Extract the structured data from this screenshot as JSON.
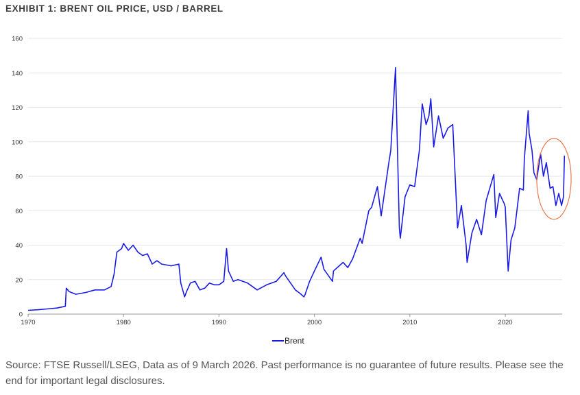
{
  "title": "EXHIBIT 1: BRENT OIL PRICE, USD / BARREL",
  "source": "Source: FTSE Russell/LSEG, Data as of 9 March 2026. Past performance is no guarantee of future results. Please see the end for important legal disclosures.",
  "chart_data": {
    "type": "line",
    "title": "EXHIBIT 1: BRENT OIL PRICE, USD / BARREL",
    "xlabel": "",
    "ylabel": "",
    "xlim": [
      1970,
      2026.3
    ],
    "ylim": [
      0,
      160
    ],
    "xticks": [
      "1970",
      "1980",
      "1990",
      "2000",
      "2010",
      "2020"
    ],
    "yticks": [
      "0",
      "20",
      "40",
      "60",
      "80",
      "100",
      "120",
      "140",
      "160"
    ],
    "grid": true,
    "legend": {
      "placement": "bottom-center",
      "entries": [
        "Brent"
      ]
    },
    "colors": {
      "Brent": "#1a1ae6",
      "highlight": "#e8794a",
      "grid": "#e6e6e6"
    },
    "highlight": {
      "shape": "ellipse",
      "x_range": [
        2023.3,
        2026.9
      ],
      "y_range": [
        55,
        102
      ]
    },
    "series": [
      {
        "name": "Brent",
        "x": [
          1970,
          1971,
          1972,
          1973,
          1973.9,
          1974,
          1974.3,
          1975,
          1976,
          1977,
          1978,
          1978.7,
          1979,
          1979.3,
          1979.8,
          1980,
          1980.5,
          1981,
          1981.5,
          1982,
          1982.5,
          1983,
          1983.5,
          1984,
          1985,
          1985.8,
          1986,
          1986.4,
          1986.6,
          1987,
          1987.5,
          1988,
          1988.5,
          1989,
          1989.5,
          1990,
          1990.5,
          1990.8,
          1991,
          1991.5,
          1992,
          1993,
          1994,
          1995,
          1996,
          1996.8,
          1997,
          1998,
          1998.5,
          1998.9,
          1999,
          1999.5,
          2000,
          2000.7,
          2001,
          2001.9,
          2002,
          2003,
          2003.5,
          2004,
          2004.8,
          2005,
          2005.7,
          2006,
          2006.6,
          2007,
          2007.8,
          2008,
          2008.5,
          2008.9,
          2009,
          2009.5,
          2010,
          2010.5,
          2011,
          2011.3,
          2011.7,
          2012,
          2012.2,
          2012.5,
          2013,
          2013.5,
          2014,
          2014.5,
          2014.9,
          2015,
          2015.4,
          2015.9,
          2016,
          2016.5,
          2017,
          2017.5,
          2018,
          2018.8,
          2019,
          2019.4,
          2019.9,
          2020,
          2020.3,
          2020.6,
          2021,
          2021.5,
          2021.9,
          2022,
          2022.4,
          2022.5,
          2022.8,
          2023,
          2023.3,
          2023.7,
          2024,
          2024.3,
          2024.7,
          2025,
          2025.3,
          2025.6,
          2025.9,
          2026.1,
          2026.2
        ],
        "values": [
          2.2,
          2.5,
          3,
          3.5,
          4.5,
          15,
          13,
          11.5,
          12.5,
          14,
          14,
          16,
          23,
          36,
          38,
          41,
          37,
          40,
          36,
          34,
          35,
          29,
          31,
          29,
          28,
          29,
          18,
          10,
          13,
          18,
          19,
          14,
          15,
          18,
          17,
          17,
          19,
          38,
          25,
          19,
          20,
          18,
          14,
          17,
          19,
          24,
          22,
          14,
          12,
          10,
          11,
          19,
          25,
          33,
          26,
          19,
          25,
          30,
          27,
          32,
          44,
          41,
          60,
          62,
          74,
          57,
          88,
          95,
          143,
          50,
          44,
          68,
          75,
          74,
          95,
          122,
          110,
          115,
          125,
          97,
          115,
          102,
          108,
          110,
          62,
          50,
          63,
          40,
          30,
          47,
          55,
          46,
          66,
          81,
          56,
          70,
          64,
          62,
          25,
          43,
          50,
          73,
          72,
          90,
          118,
          105,
          95,
          82,
          78,
          93,
          80,
          88,
          73,
          74,
          63,
          70,
          63,
          68,
          92
        ]
      }
    ]
  }
}
